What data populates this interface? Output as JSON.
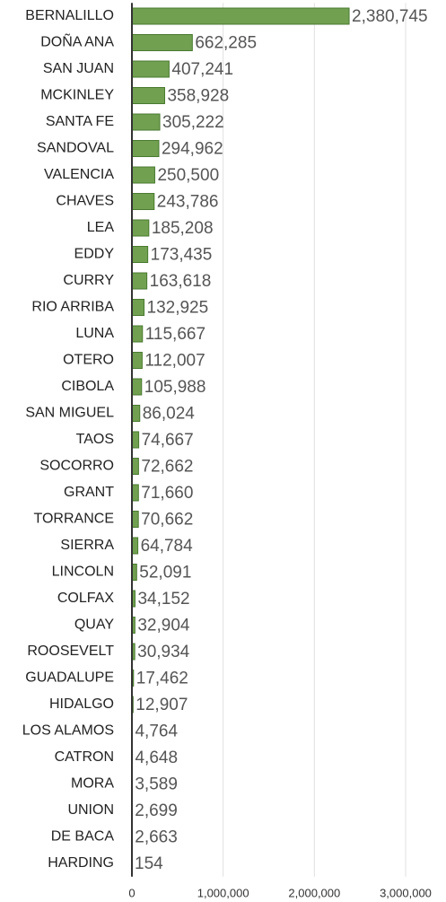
{
  "chart_data": {
    "type": "hbar",
    "categories": [
      "BERNALILLO",
      "DOÑA ANA",
      "SAN JUAN",
      "MCKINLEY",
      "SANTA FE",
      "SANDOVAL",
      "VALENCIA",
      "CHAVES",
      "LEA",
      "EDDY",
      "CURRY",
      "RIO ARRIBA",
      "LUNA",
      "OTERO",
      "CIBOLA",
      "SAN MIGUEL",
      "TAOS",
      "SOCORRO",
      "GRANT",
      "TORRANCE",
      "SIERRA",
      "LINCOLN",
      "COLFAX",
      "QUAY",
      "ROOSEVELT",
      "GUADALUPE",
      "HIDALGO",
      "LOS ALAMOS",
      "CATRON",
      "MORA",
      "UNION",
      "DE BACA",
      "HARDING"
    ],
    "values": [
      2380745,
      662285,
      407241,
      358928,
      305222,
      294962,
      250500,
      243786,
      185208,
      173435,
      163618,
      132925,
      115667,
      112007,
      105988,
      86024,
      74667,
      72662,
      71660,
      70662,
      64784,
      52091,
      34152,
      32904,
      30934,
      17462,
      12907,
      4764,
      4648,
      3589,
      2699,
      2663,
      154
    ],
    "value_labels": [
      "2,380,745",
      "662,285",
      "407,241",
      "358,928",
      "305,222",
      "294,962",
      "250,500",
      "243,786",
      "185,208",
      "173,435",
      "163,618",
      "132,925",
      "115,667",
      "112,007",
      "105,988",
      "86,024",
      "74,667",
      "72,662",
      "71,660",
      "70,662",
      "64,784",
      "52,091",
      "34,152",
      "32,904",
      "30,934",
      "17,462",
      "12,907",
      "4,764",
      "4,648",
      "3,589",
      "2,699",
      "2,663",
      "154"
    ],
    "color": "#70a050",
    "xlim": [
      0,
      3000000
    ],
    "xticks": [
      0,
      {
        "value": 1000000,
        "label": "1,000,000"
      },
      {
        "value": 2000000,
        "label": "2,000,000"
      },
      {
        "value": 3000000,
        "label": "3,000,000"
      }
    ],
    "grid": true
  }
}
